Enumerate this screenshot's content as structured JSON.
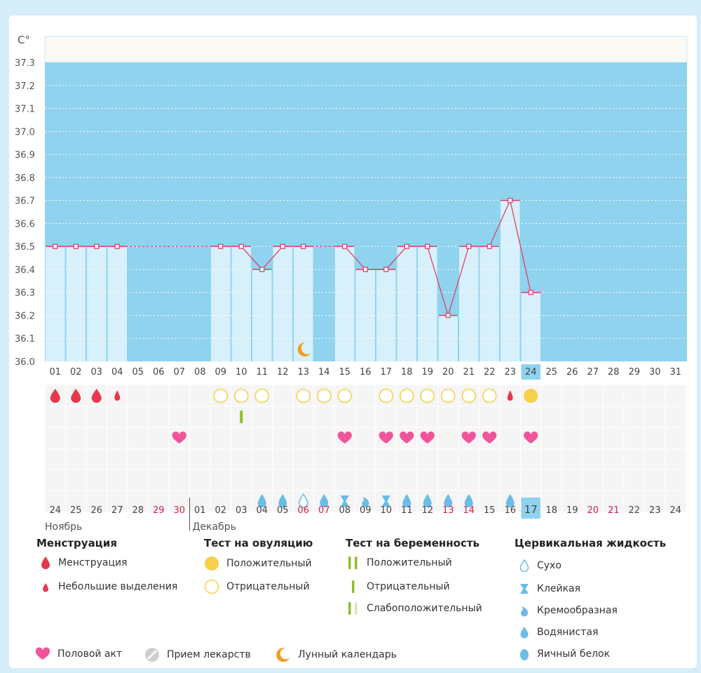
{
  "colors": {
    "background": "#d6eef9",
    "plot_fill": "#8fd3ef",
    "bar_fill": "#d7f0fb",
    "line": "#e0406a",
    "highlight": "#8fd3ef",
    "heart": "#f0559a",
    "drop_red": "#e8374d",
    "drop_blue": "#6bbce6",
    "ovulation_pos": "#f7d04a",
    "ovulation_neg": "#f2d14a",
    "preg_test": "#8cbf2b",
    "preg_test_light": "#d7e8b1",
    "moon": "#f39c1a",
    "weekend_red": "#d9204f"
  },
  "chart_data": {
    "type": "line",
    "ylabel": "C°",
    "ylim": [
      36.0,
      37.3
    ],
    "yticks": [
      "37.3",
      "37.2",
      "37.1",
      "37.0",
      "36.9",
      "36.8",
      "36.7",
      "36.6",
      "36.5",
      "36.4",
      "36.3",
      "36.2",
      "36.1",
      "36.0"
    ],
    "cycle_days": [
      "01",
      "02",
      "03",
      "04",
      "05",
      "06",
      "07",
      "08",
      "09",
      "10",
      "11",
      "12",
      "13",
      "14",
      "15",
      "16",
      "17",
      "18",
      "19",
      "20",
      "21",
      "22",
      "23",
      "24",
      "25",
      "26",
      "27",
      "28",
      "29",
      "30",
      "31"
    ],
    "highlight_day": "24",
    "series": [
      {
        "values": [
          36.5,
          36.5,
          36.5,
          36.5,
          null,
          null,
          null,
          null,
          36.5,
          36.5,
          36.4,
          36.5,
          36.5,
          null,
          36.5,
          36.4,
          36.4,
          36.5,
          36.5,
          36.2,
          36.5,
          36.5,
          36.7,
          36.3,
          null,
          null,
          null,
          null,
          null,
          null,
          null
        ]
      }
    ],
    "dates": [
      "24",
      "25",
      "26",
      "27",
      "28",
      "29",
      "30",
      "01",
      "02",
      "03",
      "04",
      "05",
      "06",
      "07",
      "08",
      "09",
      "10",
      "11",
      "12",
      "13",
      "14",
      "15",
      "16",
      "17",
      "18",
      "19",
      "20",
      "21",
      "22",
      "23",
      "24"
    ],
    "weekend_dates_index": [
      5,
      6,
      12,
      13,
      19,
      20,
      26,
      27
    ],
    "highlight_date": "17",
    "months": [
      {
        "label": "Ноябрь",
        "start_index": 0
      },
      {
        "label": "Декабрь",
        "start_index": 7
      }
    ],
    "moon_day_index": 12,
    "rows": {
      "menstruation": [
        "big",
        "big",
        "big",
        "small",
        null,
        null,
        null,
        null,
        null,
        null,
        null,
        null,
        null,
        null,
        null,
        null,
        null,
        null,
        null,
        null,
        null,
        null,
        "small",
        null,
        null,
        null,
        null,
        null,
        null,
        null,
        null
      ],
      "ovulation": [
        null,
        null,
        null,
        null,
        null,
        null,
        null,
        null,
        "neg",
        "neg",
        "neg",
        null,
        "neg",
        "neg",
        "neg",
        null,
        "neg",
        "neg",
        "neg",
        "neg",
        "neg",
        "neg",
        null,
        "pos",
        null,
        null,
        null,
        null,
        null,
        null,
        null
      ],
      "pregnancy": [
        null,
        null,
        null,
        null,
        null,
        null,
        null,
        null,
        null,
        "neg",
        null,
        null,
        null,
        null,
        null,
        null,
        null,
        null,
        null,
        null,
        null,
        null,
        null,
        null,
        null,
        null,
        null,
        null,
        null,
        null,
        null
      ],
      "intercourse": [
        null,
        null,
        null,
        null,
        null,
        null,
        "yes",
        null,
        null,
        null,
        null,
        null,
        null,
        null,
        "yes",
        null,
        "yes",
        "yes",
        "yes",
        null,
        "yes",
        "yes",
        null,
        "yes",
        null,
        null,
        null,
        null,
        null,
        null,
        null
      ],
      "cervical": [
        null,
        null,
        null,
        null,
        null,
        null,
        null,
        null,
        null,
        null,
        "watery",
        "watery",
        "dry",
        "watery",
        "sticky",
        "creamy",
        "sticky",
        "watery",
        "watery",
        "watery",
        "watery",
        null,
        "watery",
        null,
        null,
        null,
        null,
        null,
        null,
        null,
        null
      ]
    }
  },
  "legend": {
    "menstruation": {
      "title": "Менструация",
      "items": [
        "Менструация",
        "Небольшие выделения"
      ]
    },
    "ovulation": {
      "title": "Тест на овуляцию",
      "items": [
        "Положительный",
        "Отрицательный"
      ]
    },
    "pregnancy": {
      "title": "Тест на беременность",
      "items": [
        "Положительный",
        "Отрицательный",
        "Слабоположительный"
      ]
    },
    "cervical": {
      "title": "Цервикальная жидкость",
      "items": [
        "Сухо",
        "Клейкая",
        "Кремообразная",
        "Водянистая",
        "Яичный белок"
      ]
    },
    "bottom": {
      "intercourse": "Половой акт",
      "medication": "Прием лекарств",
      "lunar": "Лунный календарь"
    }
  }
}
